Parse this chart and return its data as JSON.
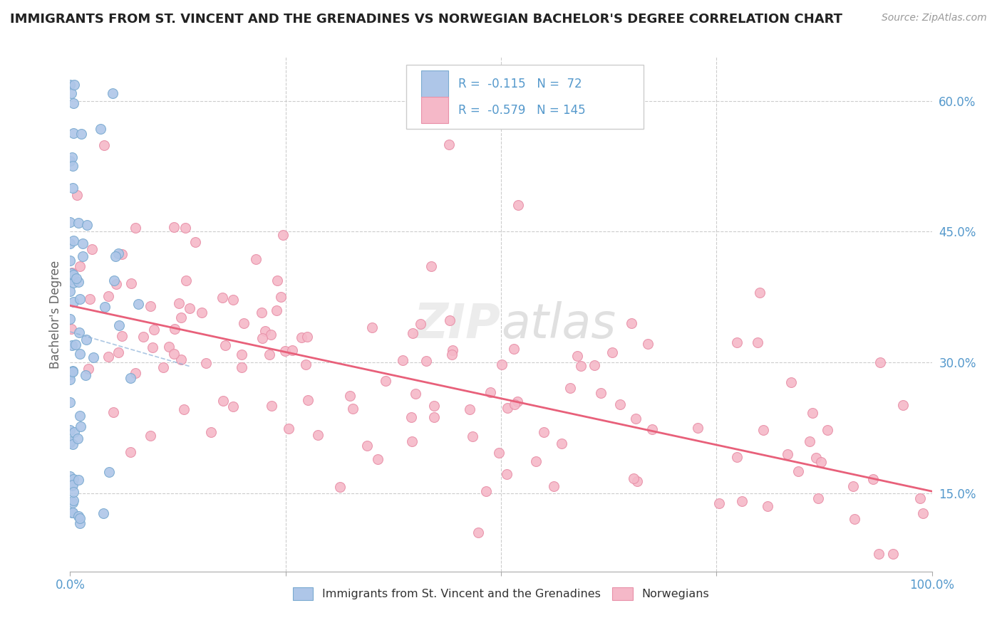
{
  "title": "IMMIGRANTS FROM ST. VINCENT AND THE GRENADINES VS NORWEGIAN BACHELOR'S DEGREE CORRELATION CHART",
  "source": "Source: ZipAtlas.com",
  "ylabel": "Bachelor's Degree",
  "blue_label": "Immigrants from St. Vincent and the Grenadines",
  "pink_label": "Norwegians",
  "blue_R": -0.115,
  "blue_N": 72,
  "pink_R": -0.579,
  "pink_N": 145,
  "blue_color": "#aec6e8",
  "pink_color": "#f5b8c8",
  "blue_edge": "#7aaad0",
  "pink_edge": "#e890a8",
  "blue_trend_color": "#8ab0d8",
  "pink_trend_color": "#e8607a",
  "xmin": 0.0,
  "xmax": 1.0,
  "ymin": 0.06,
  "ymax": 0.65,
  "watermark": "ZIPAtlas",
  "background_color": "#ffffff",
  "grid_color": "#cccccc",
  "tick_color": "#5599cc",
  "y_ticks": [
    0.15,
    0.3,
    0.45,
    0.6
  ],
  "y_tick_labels": [
    "15.0%",
    "30.0%",
    "45.0%",
    "60.0%"
  ],
  "x_tick_labels_ends": [
    "0.0%",
    "100.0%"
  ],
  "blue_trend_x": [
    0.0,
    0.14
  ],
  "blue_trend_y": [
    0.335,
    0.295
  ],
  "pink_trend_x": [
    0.0,
    1.0
  ],
  "pink_trend_y": [
    0.365,
    0.152
  ]
}
